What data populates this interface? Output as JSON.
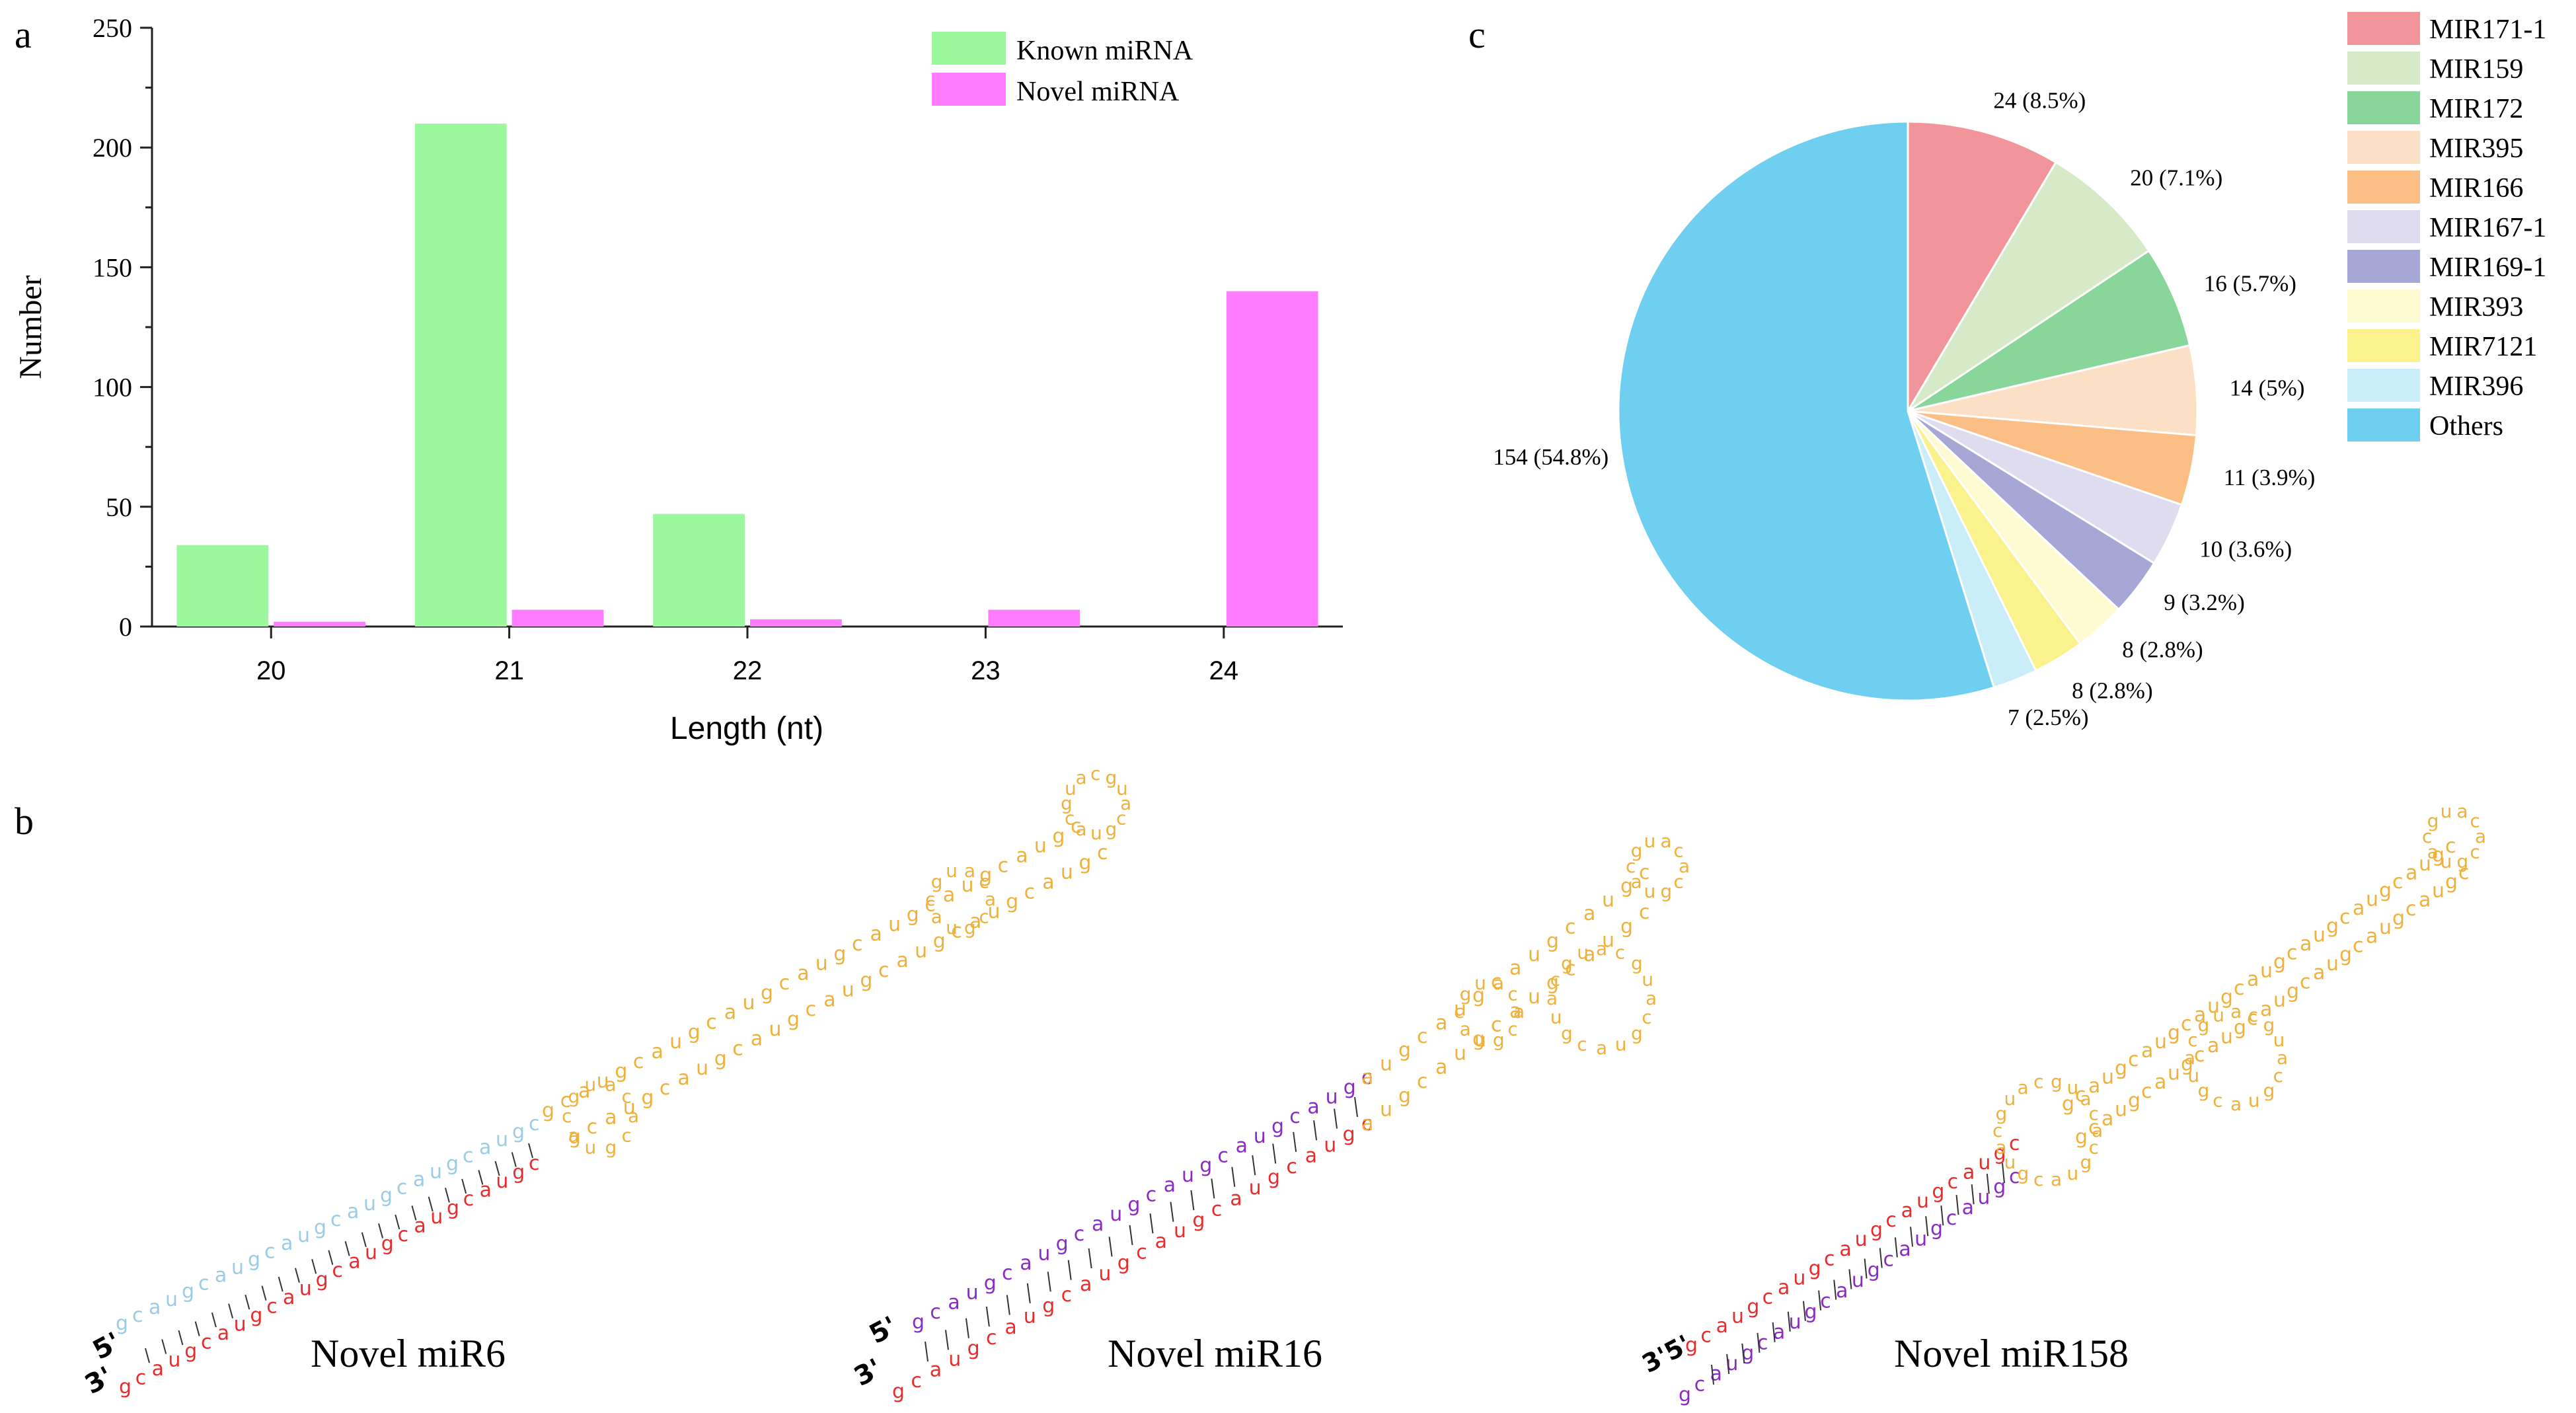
{
  "panels": {
    "a": "a",
    "b": "b",
    "c": "c"
  },
  "chart_data": [
    {
      "type": "bar",
      "title": "",
      "xlabel": "Length (nt)",
      "ylabel": "Number",
      "categories": [
        "20",
        "21",
        "22",
        "23",
        "24"
      ],
      "ylim": [
        0,
        250
      ],
      "yticks": [
        "0",
        "50",
        "100",
        "150",
        "200",
        "250"
      ],
      "series": [
        {
          "name": "Known miRNA",
          "values": [
            34,
            210,
            47,
            0,
            0
          ],
          "color": "#9cf89f"
        },
        {
          "name": "Novel miRNA",
          "values": [
            2,
            7,
            3,
            7,
            140
          ],
          "color": "#ff7cff"
        }
      ],
      "legend": "top-right",
      "grid": false
    },
    {
      "type": "pie",
      "title": "",
      "slices": [
        {
          "name": "MIR171-1",
          "value": 24,
          "label": "24 (8.5%)",
          "color": "#f1959a"
        },
        {
          "name": "MIR159",
          "value": 20,
          "label": "20 (7.1%)",
          "color": "#d6eac7"
        },
        {
          "name": "MIR172",
          "value": 16,
          "label": "16 (5.7%)",
          "color": "#88d69a"
        },
        {
          "name": "MIR395",
          "value": 14,
          "label": "14 (5%)",
          "color": "#fce0c6"
        },
        {
          "name": "MIR166",
          "value": 11,
          "label": "11 (3.9%)",
          "color": "#fbbf85"
        },
        {
          "name": "MIR167-1",
          "value": 10,
          "label": "10 (3.6%)",
          "color": "#dfdcf0"
        },
        {
          "name": "MIR169-1",
          "value": 9,
          "label": "9 (3.2%)",
          "color": "#a7a7d6"
        },
        {
          "name": "MIR393",
          "value": 8,
          "label": "8 (2.8%)",
          "color": "#fefbd3"
        },
        {
          "name": "MIR7121",
          "value": 8,
          "label": "8 (2.8%)",
          "color": "#fcf28d"
        },
        {
          "name": "MIR396",
          "value": 7,
          "label": "7 (2.5%)",
          "color": "#c9eef9"
        },
        {
          "name": "Others",
          "value": 154,
          "label": "154 (54.8%)",
          "color": "#6ecff0"
        }
      ],
      "legend": "right"
    }
  ],
  "structures": [
    {
      "label": "Novel miR6",
      "end5": "5'",
      "end3": "3'"
    },
    {
      "label": "Novel miR16",
      "end5": "5'",
      "end3": "3'"
    },
    {
      "label": "Novel miR158",
      "end5": "3'5'",
      "end3": ""
    }
  ]
}
